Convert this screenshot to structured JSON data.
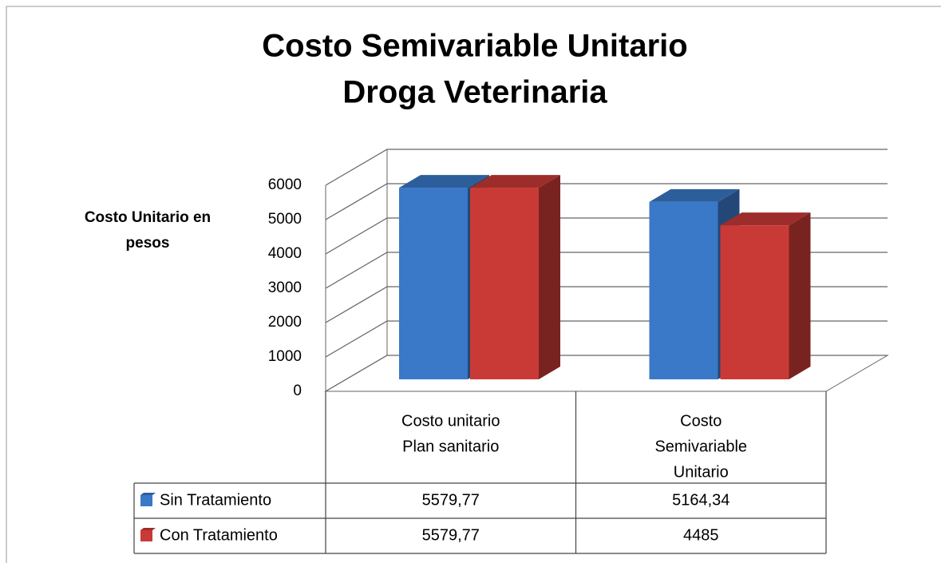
{
  "chart_data": {
    "type": "bar3d",
    "title": [
      "Costo Semivariable Unitario",
      "Droga Veterinaria"
    ],
    "y_label": [
      "Costo Unitario en",
      "pesos"
    ],
    "categories": [
      [
        "Costo unitario",
        "Plan sanitario"
      ],
      [
        "Costo",
        "Semivariable",
        "Unitario"
      ]
    ],
    "series": [
      {
        "name": "Sin Tratamiento",
        "color": "#3a78c8",
        "values": [
          5579.77,
          5164.34
        ],
        "value_labels": [
          "5579,77",
          "5164,34"
        ]
      },
      {
        "name": "Con Tratamiento",
        "color": "#c93a36",
        "values": [
          5579.77,
          4485
        ],
        "value_labels": [
          "5579,77",
          "4485"
        ]
      }
    ],
    "ylim": [
      0,
      6000
    ],
    "yticks": [
      0,
      1000,
      2000,
      3000,
      4000,
      5000,
      6000
    ],
    "grid": true
  }
}
